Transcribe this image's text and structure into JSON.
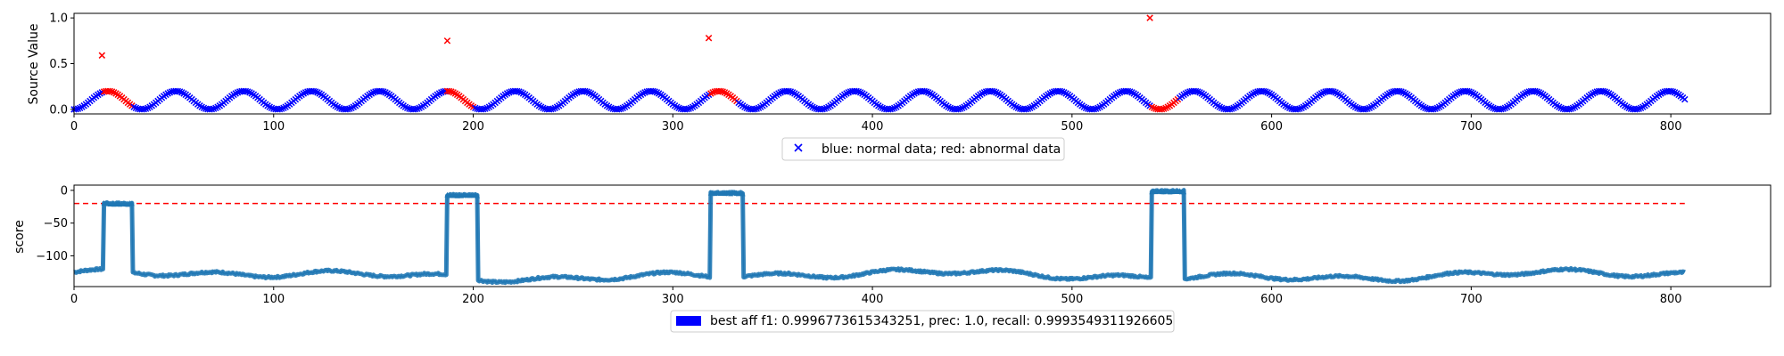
{
  "chart_data": [
    {
      "type": "scatter",
      "title": "",
      "xlabel": "",
      "ylabel": "Source Value",
      "xlim": [
        0,
        850
      ],
      "ylim": [
        -0.05,
        1.05
      ],
      "xticks": [
        0,
        100,
        200,
        300,
        400,
        500,
        600,
        700,
        800
      ],
      "yticks": [
        0.0,
        0.5,
        1.0
      ],
      "xtick_labels": [
        "0",
        "100",
        "200",
        "300",
        "400",
        "500",
        "600",
        "700",
        "800"
      ],
      "ytick_labels": [
        "0.0",
        "0.5",
        "1.0"
      ],
      "x_range": [
        0,
        807
      ],
      "signal": {
        "offset": 0.1,
        "amplitude": 0.1,
        "period": 34
      },
      "series": [
        {
          "color": "#0000ff",
          "marker": "x",
          "role": "normal"
        },
        {
          "color": "#ff0000",
          "marker": "x",
          "role": "abnormal"
        }
      ],
      "anomaly_segments": [
        [
          15,
          29
        ],
        [
          187,
          200
        ],
        [
          319,
          332
        ],
        [
          540,
          553
        ]
      ],
      "spike_points": [
        {
          "x": 14,
          "y": 0.59
        },
        {
          "x": 187,
          "y": 0.75
        },
        {
          "x": 318,
          "y": 0.78
        },
        {
          "x": 539,
          "y": 1.0
        }
      ],
      "legend": {
        "text": "blue: normal data; red: abnormal data",
        "placement": "lower-center"
      },
      "grid": false
    },
    {
      "type": "line",
      "title": "",
      "xlabel": "",
      "ylabel": "score",
      "xlim": [
        0,
        850
      ],
      "ylim": [
        -147,
        8
      ],
      "xticks": [
        0,
        100,
        200,
        300,
        400,
        500,
        600,
        700,
        800
      ],
      "yticks": [
        0,
        -50,
        -100
      ],
      "xtick_labels": [
        "0",
        "100",
        "200",
        "300",
        "400",
        "500",
        "600",
        "700",
        "800"
      ],
      "ytick_labels": [
        "0",
        "−50",
        "−100"
      ],
      "x_range": [
        0,
        807
      ],
      "baseline": -130,
      "color": "#1f77b4",
      "segments": [
        {
          "x0": 15,
          "x1": 29,
          "level": -20
        },
        {
          "x0": 187,
          "x1": 202,
          "level": -7
        },
        {
          "x0": 319,
          "x1": 335,
          "level": -4
        },
        {
          "x0": 540,
          "x1": 556,
          "level": -1
        }
      ],
      "threshold": {
        "value": -20,
        "color": "#ff0000",
        "style": "dashed"
      },
      "legend": {
        "text": "best aff f1: 0.9996773615343251, prec: 1.0, recall: 0.9993549311926605",
        "color": "#0000ff",
        "placement": "lower-center"
      },
      "grid": false
    }
  ]
}
